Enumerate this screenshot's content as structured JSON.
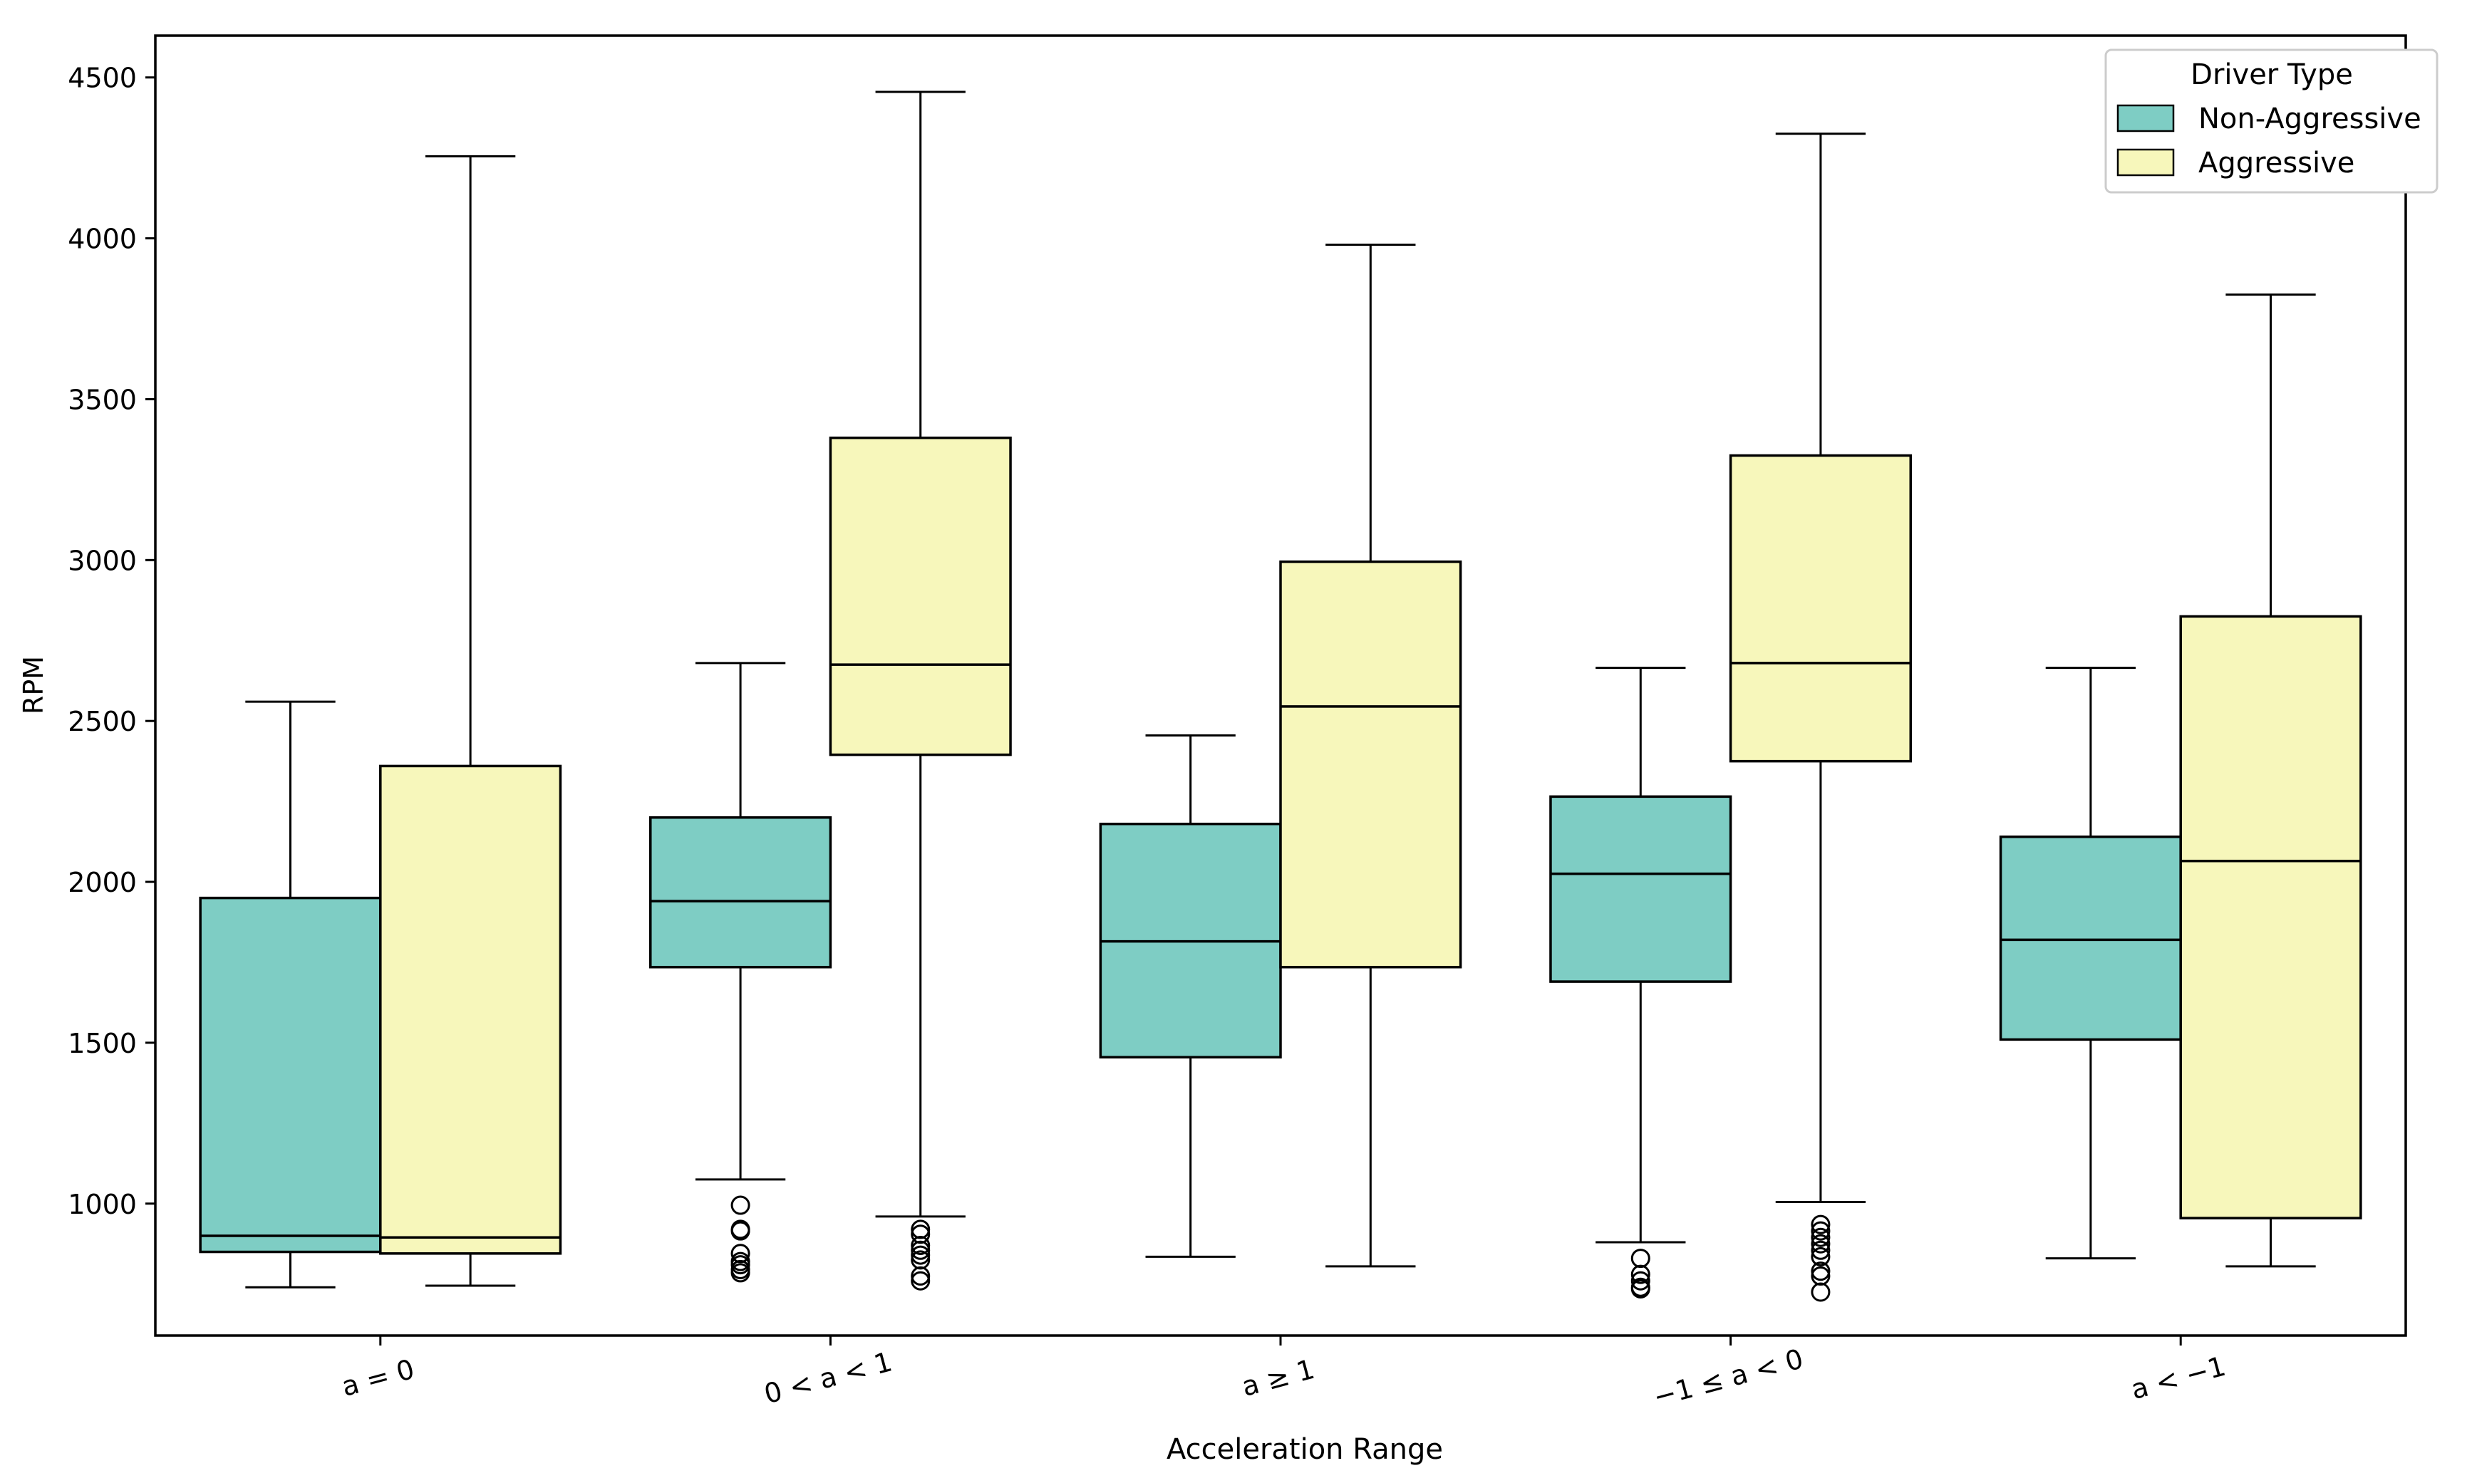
{
  "chart_data": {
    "type": "box",
    "title": "",
    "xlabel": "Acceleration Range",
    "ylabel": "RPM",
    "ylim": [
      590,
      4630
    ],
    "yticks": [
      1000,
      1500,
      2000,
      2500,
      3000,
      3500,
      4000,
      4500
    ],
    "categories": [
      "a = 0",
      "0 < a < 1",
      "a ≥ 1",
      "−1 ≤ a < 0",
      "a < −1"
    ],
    "legend": {
      "title": "Driver Type",
      "position": "top-right"
    },
    "series": [
      {
        "name": "Non-Aggressive",
        "color": "#7ecdc4",
        "boxes": [
          {
            "whisker_low": 740,
            "q1": 850,
            "median": 900,
            "q3": 1950,
            "whisker_high": 2560,
            "outliers": []
          },
          {
            "whisker_low": 1075,
            "q1": 1735,
            "median": 1940,
            "q3": 2200,
            "whisker_high": 2680,
            "outliers": [
              995,
              920,
              915,
              845,
              820,
              810,
              795,
              785
            ]
          },
          {
            "whisker_low": 835,
            "q1": 1455,
            "median": 1815,
            "q3": 2180,
            "whisker_high": 2455,
            "outliers": []
          },
          {
            "whisker_low": 880,
            "q1": 1690,
            "median": 2025,
            "q3": 2265,
            "whisker_high": 2665,
            "outliers": [
              830,
              780,
              760,
              740,
              735
            ]
          },
          {
            "whisker_low": 830,
            "q1": 1510,
            "median": 1820,
            "q3": 2140,
            "whisker_high": 2665,
            "outliers": []
          }
        ]
      },
      {
        "name": "Aggressive",
        "color": "#f7f7bb",
        "boxes": [
          {
            "whisker_low": 745,
            "q1": 845,
            "median": 895,
            "q3": 2360,
            "whisker_high": 4255,
            "outliers": []
          },
          {
            "whisker_low": 960,
            "q1": 2395,
            "median": 2675,
            "q3": 3380,
            "whisker_high": 4455,
            "outliers": [
              920,
              905,
              870,
              855,
              840,
              825,
              775,
              760
            ]
          },
          {
            "whisker_low": 805,
            "q1": 1735,
            "median": 2545,
            "q3": 2995,
            "whisker_high": 3980,
            "outliers": []
          },
          {
            "whisker_low": 1005,
            "q1": 2375,
            "median": 2680,
            "q3": 3325,
            "whisker_high": 4325,
            "outliers": [
              935,
              915,
              895,
              875,
              855,
              835,
              790,
              775,
              725
            ]
          },
          {
            "whisker_low": 805,
            "q1": 955,
            "median": 2065,
            "q3": 2825,
            "whisker_high": 3825,
            "outliers": []
          }
        ]
      }
    ]
  }
}
